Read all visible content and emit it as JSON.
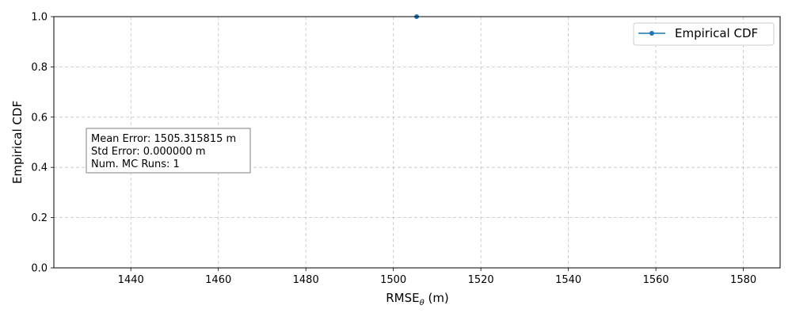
{
  "chart_data": {
    "type": "line",
    "title": "",
    "xlabel": "RMSE",
    "xlabel_sub": "θ",
    "xlabel_unit": " (m)",
    "ylabel": "Empirical CDF",
    "xlim": [
      1422.4,
      1588.4
    ],
    "ylim": [
      0,
      1
    ],
    "xticks": [
      1440,
      1460,
      1480,
      1500,
      1520,
      1540,
      1560,
      1580
    ],
    "yticks": [
      0.0,
      0.2,
      0.4,
      0.6,
      0.8,
      1.0
    ],
    "xtick_labels": [
      "1440",
      "1460",
      "1480",
      "1500",
      "1520",
      "1540",
      "1560",
      "1580"
    ],
    "ytick_labels": [
      "0.0",
      "0.2",
      "0.4",
      "0.6",
      "0.8",
      "1.0"
    ],
    "grid": true,
    "legend_position": "top-right",
    "series": [
      {
        "name": "Empirical CDF",
        "color": "#1f77b4",
        "marker": "circle",
        "points": [
          {
            "x": 1505.315815,
            "y": 1.0
          }
        ]
      }
    ],
    "annotation": {
      "lines": [
        "Mean Error: 1505.315815 m",
        "Std Error: 0.000000 m",
        "Num. MC Runs: 1"
      ]
    }
  }
}
